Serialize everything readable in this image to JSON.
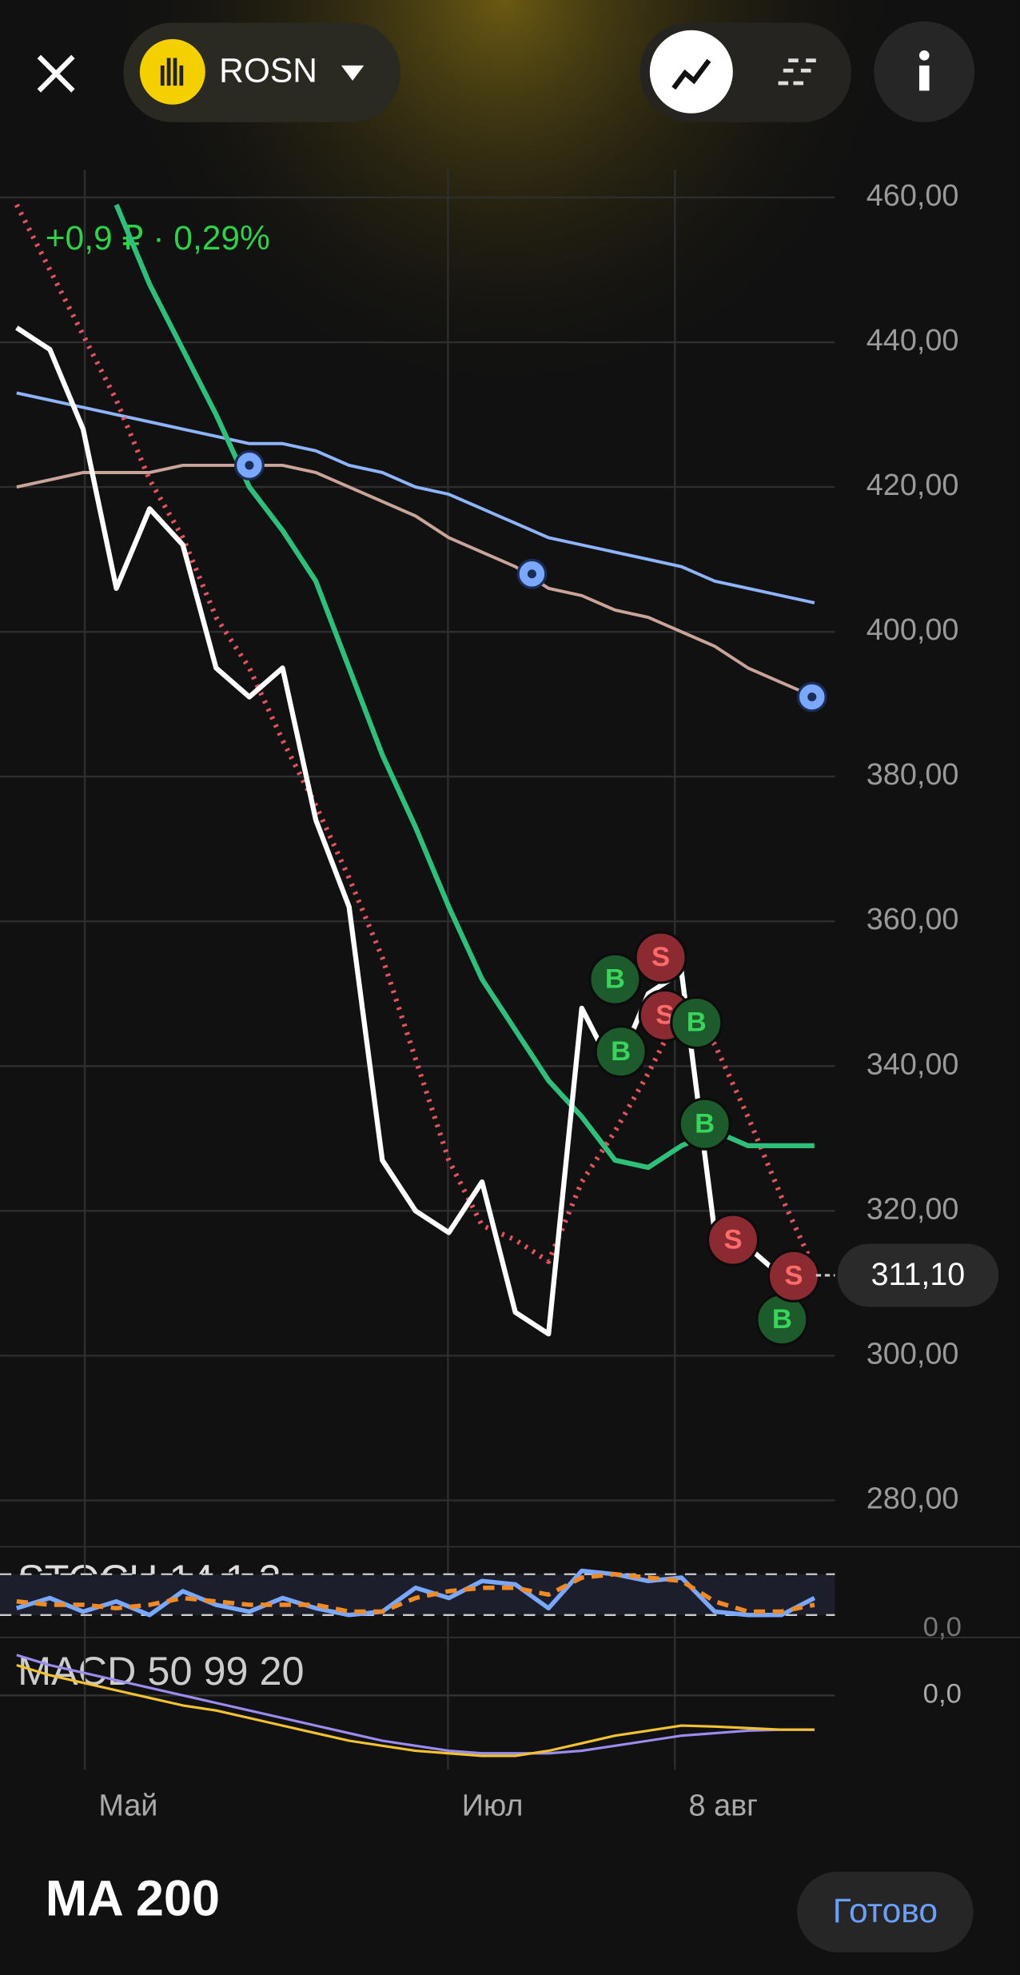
{
  "header": {
    "ticker": "ROSN",
    "change": "+0,9 ₽ · 0,29%"
  },
  "chart_data": {
    "type": "line",
    "x": [
      2,
      6,
      10,
      14,
      18,
      22,
      26,
      30,
      34,
      38,
      42,
      46,
      50,
      54,
      58,
      62,
      66,
      70,
      74,
      78,
      82,
      86,
      90,
      94,
      98
    ],
    "xlim": [
      0,
      100
    ],
    "xticks": [
      {
        "value": 10.2,
        "label": "Май"
      },
      {
        "value": 53.9,
        "label": "Июл"
      },
      {
        "value": 81.2,
        "label": "8 авг"
      }
    ],
    "ylim": [
      273.6,
      466.4
    ],
    "yticks": [
      {
        "value": 460,
        "label": "460,00"
      },
      {
        "value": 440,
        "label": "440,00"
      },
      {
        "value": 420,
        "label": "420,00"
      },
      {
        "value": 400,
        "label": "400,00"
      },
      {
        "value": 380,
        "label": "380,00"
      },
      {
        "value": 360,
        "label": "360,00"
      },
      {
        "value": 340,
        "label": "340,00"
      },
      {
        "value": 320,
        "label": "320,00"
      },
      {
        "value": 300,
        "label": "300,00"
      },
      {
        "value": 280,
        "label": "280,00"
      }
    ],
    "grid": true,
    "series": [
      {
        "color": "#8fb4ff",
        "style": "solid",
        "values": [
          433,
          432,
          431,
          430,
          429,
          428,
          427,
          426,
          426,
          425,
          423,
          422,
          420,
          419,
          417,
          415,
          413,
          412,
          411,
          410,
          409,
          407,
          406,
          405,
          404
        ]
      },
      {
        "color": "#c9a49a",
        "style": "solid",
        "values": [
          420,
          421,
          422,
          422,
          422,
          423,
          423,
          423,
          423,
          422,
          420,
          418,
          416,
          413,
          411,
          409,
          406,
          405,
          403,
          402,
          400,
          398,
          395,
          393,
          391
        ]
      },
      {
        "color": "#e0535f",
        "style": "dotted",
        "values": [
          459,
          450,
          441,
          432,
          421,
          413,
          402,
          395,
          385,
          376,
          366,
          355,
          341,
          327,
          318,
          316,
          313,
          324,
          331,
          339,
          348,
          343,
          333,
          322,
          312
        ]
      },
      {
        "color": "#2fbf7a",
        "style": "solid",
        "values": [
          null,
          null,
          null,
          459,
          448,
          439,
          430,
          420,
          414,
          407,
          395,
          383,
          373,
          362,
          352,
          345,
          338,
          333,
          327,
          326,
          329,
          331,
          329,
          329,
          329
        ]
      },
      {
        "color": "#ffffff",
        "style": "solid",
        "values": [
          442,
          439,
          428,
          406,
          417,
          412,
          395,
          391,
          395,
          374,
          362,
          327,
          320,
          317,
          324,
          306,
          303,
          348,
          339,
          350,
          353,
          317,
          315,
          311,
          311.1
        ]
      }
    ],
    "marker_color": "#7aa7ff",
    "marker_points": [
      {
        "x": 30,
        "value": 423
      },
      {
        "x": 64,
        "value": 408
      },
      {
        "x": 97.7,
        "value": 391
      }
    ],
    "signals": [
      {
        "label": "B",
        "x": 74,
        "value": 352
      },
      {
        "label": "B",
        "x": 74.7,
        "value": 342
      },
      {
        "label": "S",
        "x": 79.5,
        "value": 355
      },
      {
        "label": "S",
        "x": 80,
        "value": 347
      },
      {
        "label": "B",
        "x": 83.8,
        "value": 346
      },
      {
        "label": "B",
        "x": 84.8,
        "value": 332
      },
      {
        "label": "S",
        "x": 88.2,
        "value": 316
      },
      {
        "label": "B",
        "x": 94.1,
        "value": 305
      },
      {
        "label": "S",
        "x": 95.5,
        "value": 311
      }
    ],
    "last_price": {
      "value": 311.1,
      "label": "311,10"
    }
  },
  "stoch": {
    "label": "STOCH 14 1 3",
    "ylim": [
      0,
      100
    ],
    "yticks": [
      {
        "value": 0,
        "label": "0,0"
      }
    ],
    "levels": [
      20,
      80
    ],
    "series": [
      {
        "color": "#7aa7ff",
        "style": "solid",
        "values": [
          30,
          45,
          25,
          40,
          20,
          55,
          35,
          25,
          45,
          30,
          20,
          25,
          60,
          45,
          70,
          65,
          30,
          85,
          80,
          70,
          75,
          25,
          20,
          20,
          45
        ]
      },
      {
        "color": "#f08a24",
        "style": "dashed",
        "values": [
          40,
          35,
          35,
          30,
          35,
          45,
          40,
          35,
          35,
          35,
          25,
          25,
          45,
          55,
          60,
          60,
          50,
          75,
          80,
          75,
          70,
          40,
          25,
          25,
          35
        ]
      }
    ]
  },
  "macd": {
    "label": "MACD 50 99 20",
    "ylim": [
      -1.4,
      1.0
    ],
    "yticks": [
      {
        "value": 0,
        "label": "0,0"
      }
    ],
    "series": [
      {
        "color": "#9b8cf0",
        "style": "solid",
        "values": [
          0.8,
          0.6,
          0.45,
          0.3,
          0.15,
          0,
          -0.15,
          -0.3,
          -0.45,
          -0.6,
          -0.75,
          -0.9,
          -1.0,
          -1.1,
          -1.15,
          -1.15,
          -1.15,
          -1.1,
          -1.0,
          -0.9,
          -0.8,
          -0.75,
          -0.7,
          -0.68,
          -0.68
        ]
      },
      {
        "color": "#f2c230",
        "style": "solid",
        "values": [
          0.6,
          0.4,
          0.25,
          0.1,
          -0.05,
          -0.2,
          -0.3,
          -0.45,
          -0.6,
          -0.75,
          -0.9,
          -1.0,
          -1.1,
          -1.15,
          -1.2,
          -1.2,
          -1.1,
          -0.95,
          -0.8,
          -0.7,
          -0.6,
          -0.62,
          -0.65,
          -0.68,
          -0.68
        ]
      }
    ]
  },
  "footer": {
    "indicator": "MA 200",
    "button": "Готово"
  }
}
